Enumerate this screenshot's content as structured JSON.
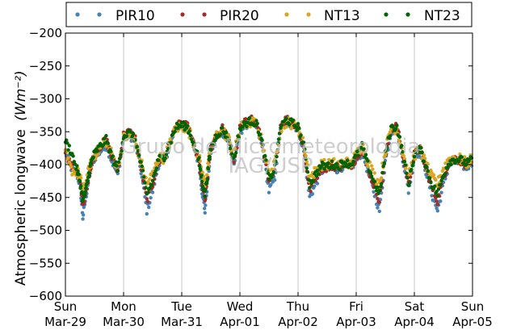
{
  "chart_data": {
    "type": "scatter",
    "ylabel": "Atmospheric longwave",
    "yunit": "(Wm⁻²)",
    "ylim": [
      -600,
      -200
    ],
    "yticks": [
      -600,
      -550,
      -500,
      -450,
      -400,
      -350,
      -300,
      -250,
      -200
    ],
    "xlim": [
      "2015-03-29",
      "2015-04-05"
    ],
    "xticks": [
      {
        "day": "Sun",
        "date": "Mar-29"
      },
      {
        "day": "Mon",
        "date": "Mar-30"
      },
      {
        "day": "Tue",
        "date": "Mar-31"
      },
      {
        "day": "Wed",
        "date": "Apr-01"
      },
      {
        "day": "Thu",
        "date": "Apr-02"
      },
      {
        "day": "Fri",
        "date": "Apr-03"
      },
      {
        "day": "Sat",
        "date": "Apr-04"
      },
      {
        "day": "Sun",
        "date": "Apr-05"
      }
    ],
    "grid": "vertical",
    "legend": "top",
    "watermark": [
      "Grupo de Micrometeorologia",
      "IAG/USP"
    ],
    "series": [
      {
        "name": "PIR10",
        "color": "#4682b4",
        "offset": -5,
        "noise": 6,
        "x": [
          0,
          0.1,
          0.2,
          0.25,
          0.3,
          0.35,
          0.4,
          0.45,
          0.5,
          0.6,
          0.7,
          0.8,
          0.9,
          1.0,
          1.1,
          1.2,
          1.3,
          1.4,
          1.5,
          1.6,
          1.7,
          1.8,
          1.9,
          2.0,
          2.1,
          2.2,
          2.3,
          2.35,
          2.4,
          2.45,
          2.5,
          2.6,
          2.7,
          2.8,
          2.9,
          3.0,
          3.1,
          3.2,
          3.3,
          3.4,
          3.5,
          3.6,
          3.7,
          3.8,
          3.9,
          4.0,
          4.1,
          4.2,
          4.3,
          4.4,
          4.5,
          4.6,
          4.7,
          4.8,
          4.9,
          5.0,
          5.1,
          5.2,
          5.3,
          5.4,
          5.5,
          5.6,
          5.7,
          5.8,
          5.9,
          6.0,
          6.1,
          6.2,
          6.3,
          6.4,
          6.5,
          6.6,
          6.7,
          6.8,
          6.9,
          7.0
        ],
        "y": [
          -380,
          -405,
          -415,
          -430,
          -480,
          -450,
          -420,
          -400,
          -390,
          -380,
          -370,
          -395,
          -415,
          -360,
          -355,
          -365,
          -410,
          -470,
          -440,
          -400,
          -395,
          -370,
          -345,
          -340,
          -345,
          -370,
          -400,
          -440,
          -470,
          -420,
          -380,
          -360,
          -350,
          -365,
          -400,
          -350,
          -340,
          -335,
          -345,
          -380,
          -440,
          -420,
          -345,
          -335,
          -340,
          -345,
          -380,
          -450,
          -430,
          -410,
          -408,
          -405,
          -408,
          -400,
          -405,
          -395,
          -380,
          -410,
          -440,
          -470,
          -395,
          -350,
          -345,
          -390,
          -440,
          -390,
          -380,
          -410,
          -445,
          -470,
          -430,
          -400,
          -395,
          -400,
          -405,
          -395
        ]
      },
      {
        "name": "PIR20",
        "color": "#a52a2a",
        "offset": 0,
        "noise": 6,
        "x": [
          0,
          0.1,
          0.2,
          0.25,
          0.3,
          0.35,
          0.4,
          0.45,
          0.5,
          0.6,
          0.7,
          0.8,
          0.9,
          1.0,
          1.1,
          1.2,
          1.3,
          1.4,
          1.5,
          1.6,
          1.7,
          1.8,
          1.9,
          2.0,
          2.1,
          2.2,
          2.3,
          2.35,
          2.4,
          2.45,
          2.5,
          2.6,
          2.7,
          2.8,
          2.9,
          3.0,
          3.1,
          3.2,
          3.3,
          3.4,
          3.5,
          3.6,
          3.7,
          3.8,
          3.9,
          4.0,
          4.1,
          4.2,
          4.3,
          4.4,
          4.5,
          4.6,
          4.7,
          4.8,
          4.9,
          5.0,
          5.1,
          5.2,
          5.3,
          5.4,
          5.5,
          5.6,
          5.7,
          5.8,
          5.9,
          6.0,
          6.1,
          6.2,
          6.3,
          6.4,
          6.5,
          6.6,
          6.7,
          6.8,
          6.9,
          7.0
        ],
        "y": [
          -378,
          -402,
          -410,
          -428,
          -460,
          -445,
          -418,
          -398,
          -385,
          -372,
          -362,
          -390,
          -410,
          -355,
          -350,
          -360,
          -405,
          -455,
          -430,
          -395,
          -390,
          -365,
          -342,
          -338,
          -342,
          -368,
          -398,
          -430,
          -455,
          -415,
          -375,
          -355,
          -345,
          -360,
          -395,
          -345,
          -335,
          -330,
          -340,
          -375,
          -430,
          -410,
          -340,
          -330,
          -336,
          -342,
          -375,
          -440,
          -420,
          -405,
          -405,
          -402,
          -405,
          -398,
          -402,
          -390,
          -375,
          -405,
          -430,
          -455,
          -390,
          -345,
          -342,
          -385,
          -430,
          -385,
          -375,
          -405,
          -435,
          -455,
          -420,
          -395,
          -390,
          -395,
          -400,
          -392
        ]
      },
      {
        "name": "NT13",
        "color": "#daa520",
        "offset": 0,
        "noise": 8,
        "x": [
          0,
          0.1,
          0.2,
          0.25,
          0.3,
          0.35,
          0.4,
          0.45,
          0.5,
          0.6,
          0.7,
          0.8,
          0.9,
          1.0,
          1.1,
          1.2,
          1.3,
          1.4,
          1.5,
          1.6,
          1.7,
          1.8,
          1.9,
          2.0,
          2.1,
          2.2,
          2.3,
          2.35,
          2.4,
          2.45,
          2.5,
          2.6,
          2.7,
          2.8,
          2.9,
          3.0,
          3.1,
          3.2,
          3.3,
          3.4,
          3.5,
          3.6,
          3.7,
          3.8,
          3.9,
          4.0,
          4.1,
          4.2,
          4.3,
          4.4,
          4.5,
          4.6,
          4.7,
          4.8,
          4.9,
          5.0,
          5.1,
          5.2,
          5.3,
          5.4,
          5.5,
          5.6,
          5.7,
          5.8,
          5.9,
          6.0,
          6.1,
          6.2,
          6.3,
          6.4,
          6.5,
          6.6,
          6.7,
          6.8,
          6.9,
          7.0
        ],
        "y": [
          -385,
          -408,
          -410,
          -420,
          -440,
          -430,
          -410,
          -395,
          -385,
          -375,
          -365,
          -385,
          -405,
          -360,
          -355,
          -365,
          -395,
          -430,
          -415,
          -390,
          -390,
          -368,
          -345,
          -342,
          -345,
          -365,
          -390,
          -415,
          -430,
          -405,
          -375,
          -355,
          -348,
          -360,
          -385,
          -345,
          -338,
          -335,
          -340,
          -372,
          -415,
          -400,
          -345,
          -335,
          -338,
          -345,
          -370,
          -420,
          -410,
          -400,
          -400,
          -398,
          -400,
          -395,
          -400,
          -385,
          -370,
          -395,
          -415,
          -430,
          -380,
          -345,
          -345,
          -380,
          -420,
          -385,
          -378,
          -400,
          -420,
          -430,
          -405,
          -392,
          -390,
          -392,
          -398,
          -390
        ]
      },
      {
        "name": "NT23",
        "color": "#006400",
        "offset": 0,
        "noise": 6,
        "x": [
          0,
          0.1,
          0.2,
          0.25,
          0.3,
          0.35,
          0.4,
          0.45,
          0.5,
          0.6,
          0.7,
          0.8,
          0.9,
          1.0,
          1.1,
          1.2,
          1.3,
          1.4,
          1.5,
          1.6,
          1.7,
          1.8,
          1.9,
          2.0,
          2.1,
          2.2,
          2.3,
          2.35,
          2.4,
          2.45,
          2.5,
          2.6,
          2.7,
          2.8,
          2.9,
          3.0,
          3.1,
          3.2,
          3.3,
          3.4,
          3.5,
          3.6,
          3.7,
          3.8,
          3.9,
          4.0,
          4.1,
          4.2,
          4.3,
          4.4,
          4.5,
          4.6,
          4.7,
          4.8,
          4.9,
          5.0,
          5.1,
          5.2,
          5.3,
          5.4,
          5.5,
          5.6,
          5.7,
          5.8,
          5.9,
          6.0,
          6.1,
          6.2,
          6.3,
          6.4,
          6.5,
          6.6,
          6.7,
          6.8,
          6.9,
          7.0
        ],
        "y": [
          -365,
          -380,
          -408,
          -425,
          -455,
          -440,
          -415,
          -395,
          -383,
          -372,
          -362,
          -388,
          -408,
          -356,
          -352,
          -362,
          -400,
          -445,
          -425,
          -392,
          -388,
          -366,
          -343,
          -340,
          -343,
          -366,
          -395,
          -425,
          -445,
          -410,
          -374,
          -355,
          -347,
          -360,
          -392,
          -346,
          -337,
          -333,
          -340,
          -373,
          -425,
          -405,
          -342,
          -332,
          -337,
          -343,
          -372,
          -430,
          -415,
          -402,
          -402,
          -400,
          -402,
          -396,
          -400,
          -388,
          -372,
          -400,
          -425,
          -445,
          -385,
          -344,
          -343,
          -382,
          -430,
          -385,
          -376,
          -402,
          -430,
          -445,
          -415,
          -395,
          -392,
          -393,
          -398,
          -392
        ]
      }
    ]
  }
}
